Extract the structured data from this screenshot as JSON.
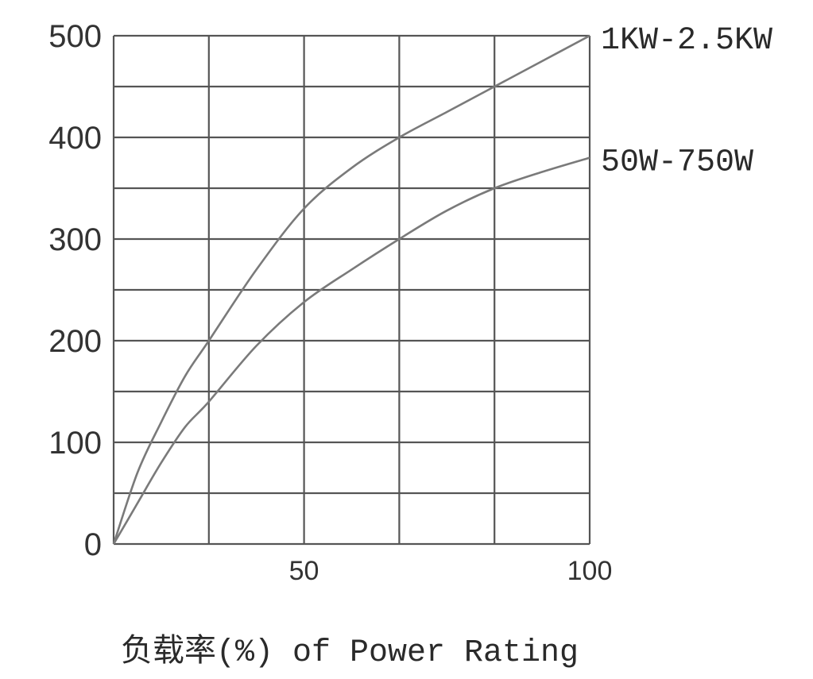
{
  "chart_data": {
    "type": "line",
    "title": "",
    "xlabel": "负载率(%) of Power Rating",
    "ylabel": "",
    "xlim": [
      0,
      100
    ],
    "ylim": [
      0,
      500
    ],
    "x_ticks": [
      {
        "value": 50,
        "label": "50"
      },
      {
        "value": 100,
        "label": "100"
      }
    ],
    "y_ticks": [
      {
        "value": 0,
        "label": "0"
      },
      {
        "value": 100,
        "label": "100"
      },
      {
        "value": 200,
        "label": "200"
      },
      {
        "value": 300,
        "label": "300"
      },
      {
        "value": 400,
        "label": "400"
      },
      {
        "value": 500,
        "label": "500"
      }
    ],
    "grid": true,
    "grid_x_values": [
      0,
      20,
      40,
      60,
      80,
      100
    ],
    "grid_y_values": [
      0,
      50,
      100,
      150,
      200,
      250,
      300,
      350,
      400,
      450,
      500
    ],
    "series": [
      {
        "name": "1KW-2.5KW",
        "color": "#7a7a7a",
        "x": [
          0,
          5,
          10,
          15,
          20,
          30,
          40,
          50,
          60,
          70,
          80,
          90,
          100
        ],
        "y": [
          0,
          70,
          120,
          165,
          200,
          270,
          330,
          370,
          400,
          425,
          450,
          475,
          500
        ]
      },
      {
        "name": "50W-750W",
        "color": "#7a7a7a",
        "x": [
          0,
          5,
          10,
          15,
          20,
          30,
          40,
          50,
          60,
          70,
          80,
          90,
          100
        ],
        "y": [
          0,
          40,
          80,
          115,
          140,
          195,
          238,
          270,
          300,
          328,
          350,
          366,
          380
        ]
      }
    ]
  }
}
